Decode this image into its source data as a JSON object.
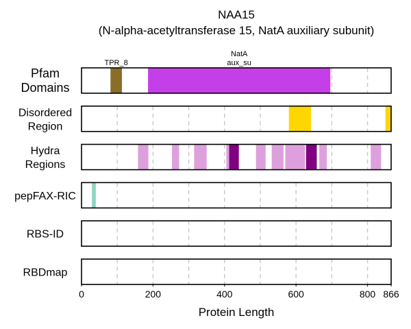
{
  "chart_data": {
    "type": "protein-track",
    "title": "NAA15",
    "subtitle": "(N-alpha-acetyltransferase 15, NatA auxiliary subunit)",
    "xlabel": "Protein Length",
    "xlim": [
      0,
      866
    ],
    "xticks": [
      0,
      200,
      400,
      600,
      800,
      866
    ],
    "tracks": [
      {
        "label": [
          "Pfam",
          "Domains"
        ],
        "segments": [
          {
            "start": 81,
            "end": 113,
            "color": "#8B6D28",
            "label": [
              "TPR_8"
            ]
          },
          {
            "start": 186,
            "end": 696,
            "color": "#C53FE8",
            "label": [
              "NatA",
              "aux_su"
            ]
          }
        ]
      },
      {
        "label": [
          "Disordered",
          "Region"
        ],
        "segments": [
          {
            "start": 580,
            "end": 642,
            "color": "#FFD700"
          },
          {
            "start": 850,
            "end": 866,
            "color": "#FFD700"
          }
        ]
      },
      {
        "label": [
          "Hydra",
          "Regions"
        ],
        "segments": [
          {
            "start": 158,
            "end": 187,
            "color": "#DDA0DD"
          },
          {
            "start": 253,
            "end": 273,
            "color": "#DDA0DD"
          },
          {
            "start": 315,
            "end": 350,
            "color": "#DDA0DD"
          },
          {
            "start": 405,
            "end": 418,
            "color": "#DDA0DD"
          },
          {
            "start": 413,
            "end": 440,
            "color": "#800080"
          },
          {
            "start": 488,
            "end": 515,
            "color": "#DDA0DD"
          },
          {
            "start": 532,
            "end": 565,
            "color": "#DDA0DD"
          },
          {
            "start": 570,
            "end": 625,
            "color": "#DDA0DD"
          },
          {
            "start": 628,
            "end": 658,
            "color": "#800080"
          },
          {
            "start": 665,
            "end": 686,
            "color": "#DDA0DD"
          },
          {
            "start": 809,
            "end": 838,
            "color": "#DDA0DD"
          }
        ]
      },
      {
        "label": [
          "pepFAX-RIC"
        ],
        "segments": [
          {
            "start": 29,
            "end": 40,
            "color": "#8FD6C2"
          }
        ]
      },
      {
        "label": [
          "RBS-ID"
        ],
        "segments": []
      },
      {
        "label": [
          "RBDmap"
        ],
        "segments": []
      }
    ]
  }
}
